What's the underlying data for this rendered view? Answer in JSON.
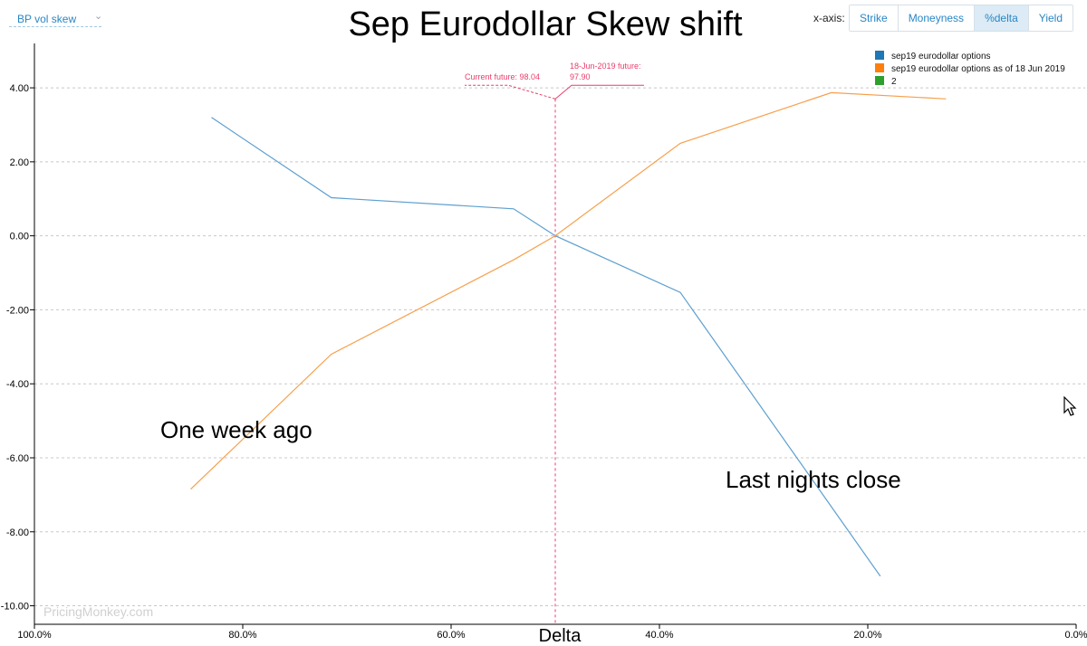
{
  "header": {
    "dropdown_label": "BP vol skew",
    "title": "Sep Eurodollar Skew shift",
    "xaxis_label": "x-axis:",
    "xaxis_buttons": [
      "Strike",
      "Moneyness",
      "%delta",
      "Yield"
    ],
    "active_button": "%delta"
  },
  "watermark": "PricingMonkey.com",
  "annotations": {
    "one_week": "One week ago",
    "last_close": "Last nights close"
  },
  "chart_data": {
    "type": "line",
    "xlabel": "Delta",
    "ylabel": "",
    "xlim": [
      100,
      0
    ],
    "ylim": [
      -10.5,
      5.2
    ],
    "x_reversed": true,
    "x_ticks": [
      "100.0%",
      "80.0%",
      "60.0%",
      "40.0%",
      "20.0%",
      "0.0%"
    ],
    "y_ticks": [
      "4.00",
      "2.00",
      "0.00",
      "-2.00",
      "-4.00",
      "-6.00",
      "-8.00",
      "-10.00"
    ],
    "grid": "horizontal",
    "legend_position": "top-right",
    "series": [
      {
        "name": "sep19 eurodollar options",
        "color": "#1f77b4",
        "line_color": "#5d9fcf",
        "x": [
          83.0,
          71.5,
          54.0,
          50.0,
          38.0,
          18.8
        ],
        "y": [
          3.2,
          1.03,
          0.73,
          0.0,
          -1.53,
          -9.2
        ]
      },
      {
        "name": "sep19 eurodollar options as of 18 Jun 2019",
        "color": "#ff7f0e",
        "line_color": "#f6a04d",
        "x": [
          85.0,
          71.5,
          54.0,
          50.0,
          38.0,
          23.5,
          12.5
        ],
        "y": [
          -6.85,
          -3.2,
          -0.65,
          0.0,
          2.5,
          3.87,
          3.7
        ]
      },
      {
        "name": "2",
        "color": "#2ca02c",
        "x": [],
        "y": []
      }
    ],
    "markers": [
      {
        "label": "Current future: 98.04"
      },
      {
        "label": "18-Jun-2019 future:",
        "value": "97.90"
      }
    ]
  }
}
